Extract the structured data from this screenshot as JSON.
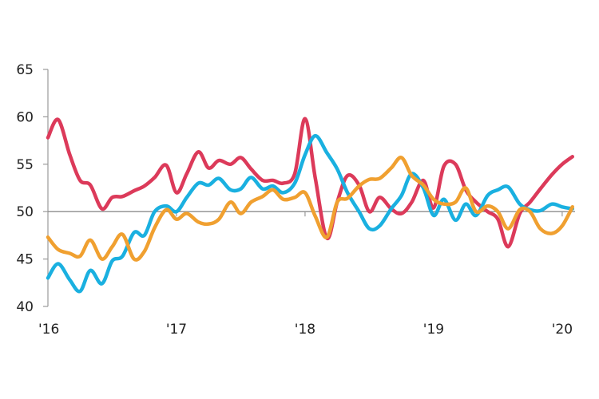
{
  "chart_data": {
    "type": "line",
    "title": "",
    "xlabel": "",
    "ylabel": "",
    "ylim": [
      40,
      65
    ],
    "xlim": [
      2016.0,
      2020.1
    ],
    "reference_line": 50,
    "grid": false,
    "legend": "none",
    "y_ticks": [
      40,
      45,
      50,
      55,
      60,
      65
    ],
    "y_tick_labels": [
      "40",
      "45",
      "50",
      "55",
      "60",
      "65"
    ],
    "x_ticks": [
      2016,
      2017,
      2018,
      2019,
      2020
    ],
    "x_tick_labels": [
      "'16",
      "'17",
      "'18",
      "'19",
      "'20"
    ],
    "series": [
      {
        "color": "#dc3a5a",
        "points": [
          [
            2016.0,
            57.8
          ],
          [
            2016.08,
            59.7
          ],
          [
            2016.17,
            56.0
          ],
          [
            2016.25,
            53.3
          ],
          [
            2016.33,
            52.8
          ],
          [
            2016.42,
            50.3
          ],
          [
            2016.5,
            51.5
          ],
          [
            2016.58,
            51.6
          ],
          [
            2016.67,
            52.2
          ],
          [
            2016.75,
            52.7
          ],
          [
            2016.83,
            53.6
          ],
          [
            2016.92,
            54.9
          ],
          [
            2017.0,
            52.0
          ],
          [
            2017.08,
            54.0
          ],
          [
            2017.17,
            56.3
          ],
          [
            2017.25,
            54.6
          ],
          [
            2017.33,
            55.4
          ],
          [
            2017.42,
            55.0
          ],
          [
            2017.5,
            55.7
          ],
          [
            2017.58,
            54.5
          ],
          [
            2017.67,
            53.3
          ],
          [
            2017.75,
            53.3
          ],
          [
            2017.83,
            53.0
          ],
          [
            2017.92,
            54.0
          ],
          [
            2018.0,
            59.8
          ],
          [
            2018.08,
            53.5
          ],
          [
            2018.17,
            47.2
          ],
          [
            2018.25,
            51.0
          ],
          [
            2018.33,
            53.8
          ],
          [
            2018.42,
            52.8
          ],
          [
            2018.5,
            50.0
          ],
          [
            2018.58,
            51.5
          ],
          [
            2018.67,
            50.3
          ],
          [
            2018.75,
            49.8
          ],
          [
            2018.83,
            51.0
          ],
          [
            2018.92,
            53.3
          ],
          [
            2019.0,
            50.4
          ],
          [
            2019.08,
            54.8
          ],
          [
            2019.17,
            55.0
          ],
          [
            2019.25,
            52.3
          ],
          [
            2019.33,
            51.0
          ],
          [
            2019.42,
            50.0
          ],
          [
            2019.5,
            49.2
          ],
          [
            2019.58,
            46.3
          ],
          [
            2019.67,
            49.8
          ],
          [
            2019.75,
            51.0
          ],
          [
            2019.83,
            52.4
          ],
          [
            2019.92,
            53.9
          ],
          [
            2020.0,
            55.0
          ],
          [
            2020.08,
            55.8
          ]
        ]
      },
      {
        "color": "#1ab0e0",
        "points": [
          [
            2016.0,
            43.0
          ],
          [
            2016.08,
            44.5
          ],
          [
            2016.17,
            42.8
          ],
          [
            2016.25,
            41.6
          ],
          [
            2016.33,
            43.8
          ],
          [
            2016.42,
            42.4
          ],
          [
            2016.5,
            44.8
          ],
          [
            2016.58,
            45.3
          ],
          [
            2016.67,
            47.8
          ],
          [
            2016.75,
            47.5
          ],
          [
            2016.83,
            50.0
          ],
          [
            2016.92,
            50.6
          ],
          [
            2017.0,
            50.0
          ],
          [
            2017.08,
            51.5
          ],
          [
            2017.17,
            53.0
          ],
          [
            2017.25,
            52.8
          ],
          [
            2017.33,
            53.5
          ],
          [
            2017.42,
            52.3
          ],
          [
            2017.5,
            52.4
          ],
          [
            2017.58,
            53.6
          ],
          [
            2017.67,
            52.4
          ],
          [
            2017.75,
            52.7
          ],
          [
            2017.83,
            52.0
          ],
          [
            2017.92,
            53.0
          ],
          [
            2018.0,
            56.0
          ],
          [
            2018.08,
            58.0
          ],
          [
            2018.17,
            56.2
          ],
          [
            2018.25,
            54.5
          ],
          [
            2018.33,
            52.0
          ],
          [
            2018.42,
            50.0
          ],
          [
            2018.5,
            48.2
          ],
          [
            2018.58,
            48.5
          ],
          [
            2018.67,
            50.3
          ],
          [
            2018.75,
            51.7
          ],
          [
            2018.83,
            54.0
          ],
          [
            2018.92,
            52.5
          ],
          [
            2019.0,
            49.6
          ],
          [
            2019.08,
            51.3
          ],
          [
            2019.17,
            49.1
          ],
          [
            2019.25,
            50.8
          ],
          [
            2019.33,
            49.6
          ],
          [
            2019.42,
            51.7
          ],
          [
            2019.5,
            52.3
          ],
          [
            2019.58,
            52.6
          ],
          [
            2019.67,
            50.8
          ],
          [
            2019.75,
            50.2
          ],
          [
            2019.83,
            50.1
          ],
          [
            2019.92,
            50.8
          ],
          [
            2020.0,
            50.5
          ],
          [
            2020.08,
            50.3
          ]
        ]
      },
      {
        "color": "#f0a030",
        "points": [
          [
            2016.0,
            47.3
          ],
          [
            2016.08,
            46.0
          ],
          [
            2016.17,
            45.6
          ],
          [
            2016.25,
            45.3
          ],
          [
            2016.33,
            47.0
          ],
          [
            2016.42,
            45.0
          ],
          [
            2016.5,
            46.3
          ],
          [
            2016.58,
            47.6
          ],
          [
            2016.67,
            45.0
          ],
          [
            2016.75,
            45.8
          ],
          [
            2016.83,
            48.3
          ],
          [
            2016.92,
            50.2
          ],
          [
            2017.0,
            49.2
          ],
          [
            2017.08,
            49.8
          ],
          [
            2017.17,
            48.9
          ],
          [
            2017.25,
            48.7
          ],
          [
            2017.33,
            49.2
          ],
          [
            2017.42,
            51.0
          ],
          [
            2017.5,
            49.8
          ],
          [
            2017.58,
            51.0
          ],
          [
            2017.67,
            51.6
          ],
          [
            2017.75,
            52.3
          ],
          [
            2017.83,
            51.3
          ],
          [
            2017.92,
            51.5
          ],
          [
            2018.0,
            52.0
          ],
          [
            2018.08,
            49.5
          ],
          [
            2018.17,
            47.3
          ],
          [
            2018.25,
            51.0
          ],
          [
            2018.33,
            51.4
          ],
          [
            2018.42,
            52.7
          ],
          [
            2018.5,
            53.4
          ],
          [
            2018.58,
            53.5
          ],
          [
            2018.67,
            54.6
          ],
          [
            2018.75,
            55.7
          ],
          [
            2018.83,
            53.8
          ],
          [
            2018.92,
            52.8
          ],
          [
            2019.0,
            51.3
          ],
          [
            2019.08,
            50.8
          ],
          [
            2019.17,
            51.0
          ],
          [
            2019.25,
            52.5
          ],
          [
            2019.33,
            50.0
          ],
          [
            2019.42,
            50.6
          ],
          [
            2019.5,
            50.0
          ],
          [
            2019.58,
            48.2
          ],
          [
            2019.67,
            50.2
          ],
          [
            2019.75,
            50.0
          ],
          [
            2019.83,
            48.2
          ],
          [
            2019.92,
            47.7
          ],
          [
            2020.0,
            48.5
          ],
          [
            2020.08,
            50.5
          ]
        ]
      }
    ]
  }
}
